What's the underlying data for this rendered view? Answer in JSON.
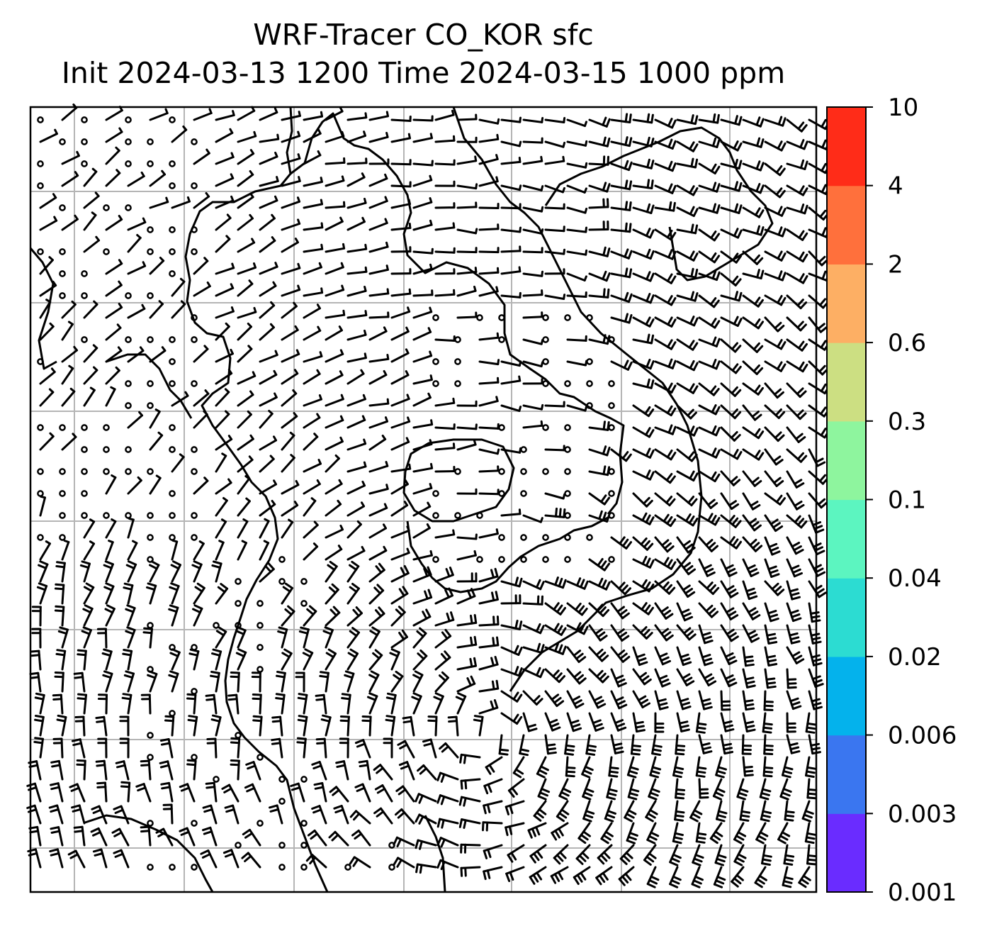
{
  "title": {
    "line1": "WRF-Tracer CO_KOR sfc",
    "line2": "Init 2024-03-13 1200 Time 2024-03-15 1000 ppm"
  },
  "colorbar": {
    "levels": [
      "0.001",
      "0.003",
      "0.006",
      "0.02",
      "0.04",
      "0.1",
      "0.3",
      "0.6",
      "2",
      "4",
      "10"
    ],
    "colors": [
      "#6a2cff",
      "#3a76f0",
      "#04b2ec",
      "#2cdcd2",
      "#5cf5c0",
      "#8ef59e",
      "#ccdf82",
      "#fdaf64",
      "#ff703c",
      "#ff2c18"
    ]
  },
  "map": {
    "background": "#ffffff",
    "gridline_color": "#b5b5b5",
    "coastline_color": "#000000",
    "barb_color": "#000000",
    "vertical_gridlines": 6,
    "horizontal_gridlines": 7
  }
}
